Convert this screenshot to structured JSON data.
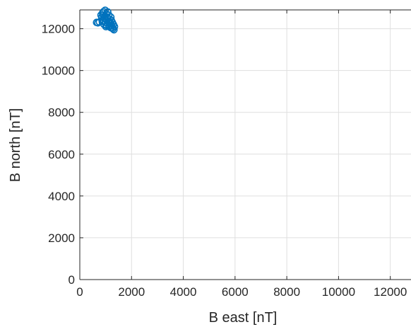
{
  "chart_data": {
    "type": "scatter",
    "title": "",
    "xlabel": "B east [nT]",
    "ylabel": "B north  [nT]",
    "xlim": [
      0,
      12800
    ],
    "ylim": [
      0,
      12900
    ],
    "xticks": [
      0,
      2000,
      4000,
      6000,
      8000,
      10000,
      12000
    ],
    "yticks": [
      0,
      2000,
      4000,
      6000,
      8000,
      10000,
      12000
    ],
    "xtick_labels": [
      "0",
      "2000",
      "4000",
      "6000",
      "8000",
      "10000",
      "12000"
    ],
    "ytick_labels": [
      "0",
      "2000",
      "4000",
      "6000",
      "8000",
      "10000",
      "12000"
    ],
    "grid": true,
    "marker_color": "#0072BD",
    "series": [
      {
        "values": [
          {
            "x": 650,
            "y": 12300
          },
          {
            "x": 700,
            "y": 12280
          },
          {
            "x": 760,
            "y": 12320
          },
          {
            "x": 820,
            "y": 12650
          },
          {
            "x": 850,
            "y": 12550
          },
          {
            "x": 880,
            "y": 12750
          },
          {
            "x": 900,
            "y": 12400
          },
          {
            "x": 920,
            "y": 12820
          },
          {
            "x": 940,
            "y": 12200
          },
          {
            "x": 960,
            "y": 12600
          },
          {
            "x": 980,
            "y": 12880
          },
          {
            "x": 1000,
            "y": 12450
          },
          {
            "x": 1020,
            "y": 12700
          },
          {
            "x": 1040,
            "y": 12150
          },
          {
            "x": 1060,
            "y": 12550
          },
          {
            "x": 1080,
            "y": 12800
          },
          {
            "x": 1100,
            "y": 12350
          },
          {
            "x": 1120,
            "y": 12650
          },
          {
            "x": 1140,
            "y": 12100
          },
          {
            "x": 1160,
            "y": 12450
          },
          {
            "x": 1180,
            "y": 12250
          },
          {
            "x": 1200,
            "y": 12050
          },
          {
            "x": 1220,
            "y": 12400
          },
          {
            "x": 1240,
            "y": 12150
          },
          {
            "x": 1260,
            "y": 12300
          },
          {
            "x": 1280,
            "y": 12000
          },
          {
            "x": 1300,
            "y": 12200
          },
          {
            "x": 1320,
            "y": 11950
          },
          {
            "x": 1340,
            "y": 12100
          },
          {
            "x": 1200,
            "y": 12550
          },
          {
            "x": 1100,
            "y": 12200
          },
          {
            "x": 1000,
            "y": 12300
          },
          {
            "x": 900,
            "y": 12650
          },
          {
            "x": 950,
            "y": 12500
          },
          {
            "x": 1050,
            "y": 12400
          },
          {
            "x": 1150,
            "y": 12250
          },
          {
            "x": 1250,
            "y": 12050
          },
          {
            "x": 870,
            "y": 12350
          },
          {
            "x": 1010,
            "y": 12100
          },
          {
            "x": 1090,
            "y": 12500
          }
        ]
      }
    ]
  }
}
